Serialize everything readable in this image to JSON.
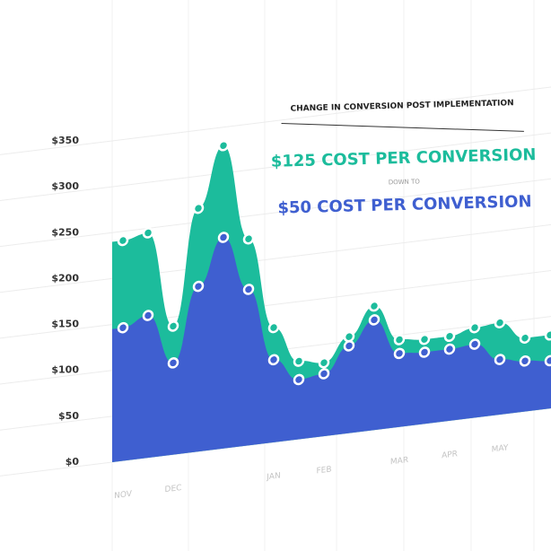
{
  "chart_data": {
    "type": "area",
    "title": "CHANGE IN CONVERSION POST IMPLEMENTATION",
    "annotations": [
      "$125 COST PER CONVERSION",
      "DOWN TO",
      "$50 COST PER CONVERSION"
    ],
    "categories": [
      "NOV",
      null,
      "DEC",
      null,
      null,
      null,
      "JAN",
      null,
      "FEB",
      null,
      null,
      "MAR",
      null,
      "APR",
      null,
      "MAY",
      null,
      null
    ],
    "series": [
      {
        "color": "#1cbc9c",
        "values": [
          240,
          245,
          140,
          265,
          330,
          225,
          125,
          85,
          80,
          105,
          135,
          95,
          92,
          92,
          98,
          100,
          80,
          80
        ]
      },
      {
        "color": "#3f5fd0",
        "values": [
          145,
          155,
          100,
          180,
          230,
          170,
          90,
          65,
          68,
          95,
          120,
          80,
          78,
          78,
          80,
          60,
          55,
          52
        ]
      }
    ],
    "ylim": [
      0,
      350
    ],
    "yticks": [
      {
        "value": 0,
        "label": "$0"
      },
      {
        "value": 50,
        "label": "$50"
      },
      {
        "value": 100,
        "label": "$100"
      },
      {
        "value": 150,
        "label": "$150"
      },
      {
        "value": 200,
        "label": "$200"
      },
      {
        "value": 250,
        "label": "$250"
      },
      {
        "value": 300,
        "label": "$300"
      },
      {
        "value": 350,
        "label": "$350"
      }
    ],
    "grid": true
  }
}
